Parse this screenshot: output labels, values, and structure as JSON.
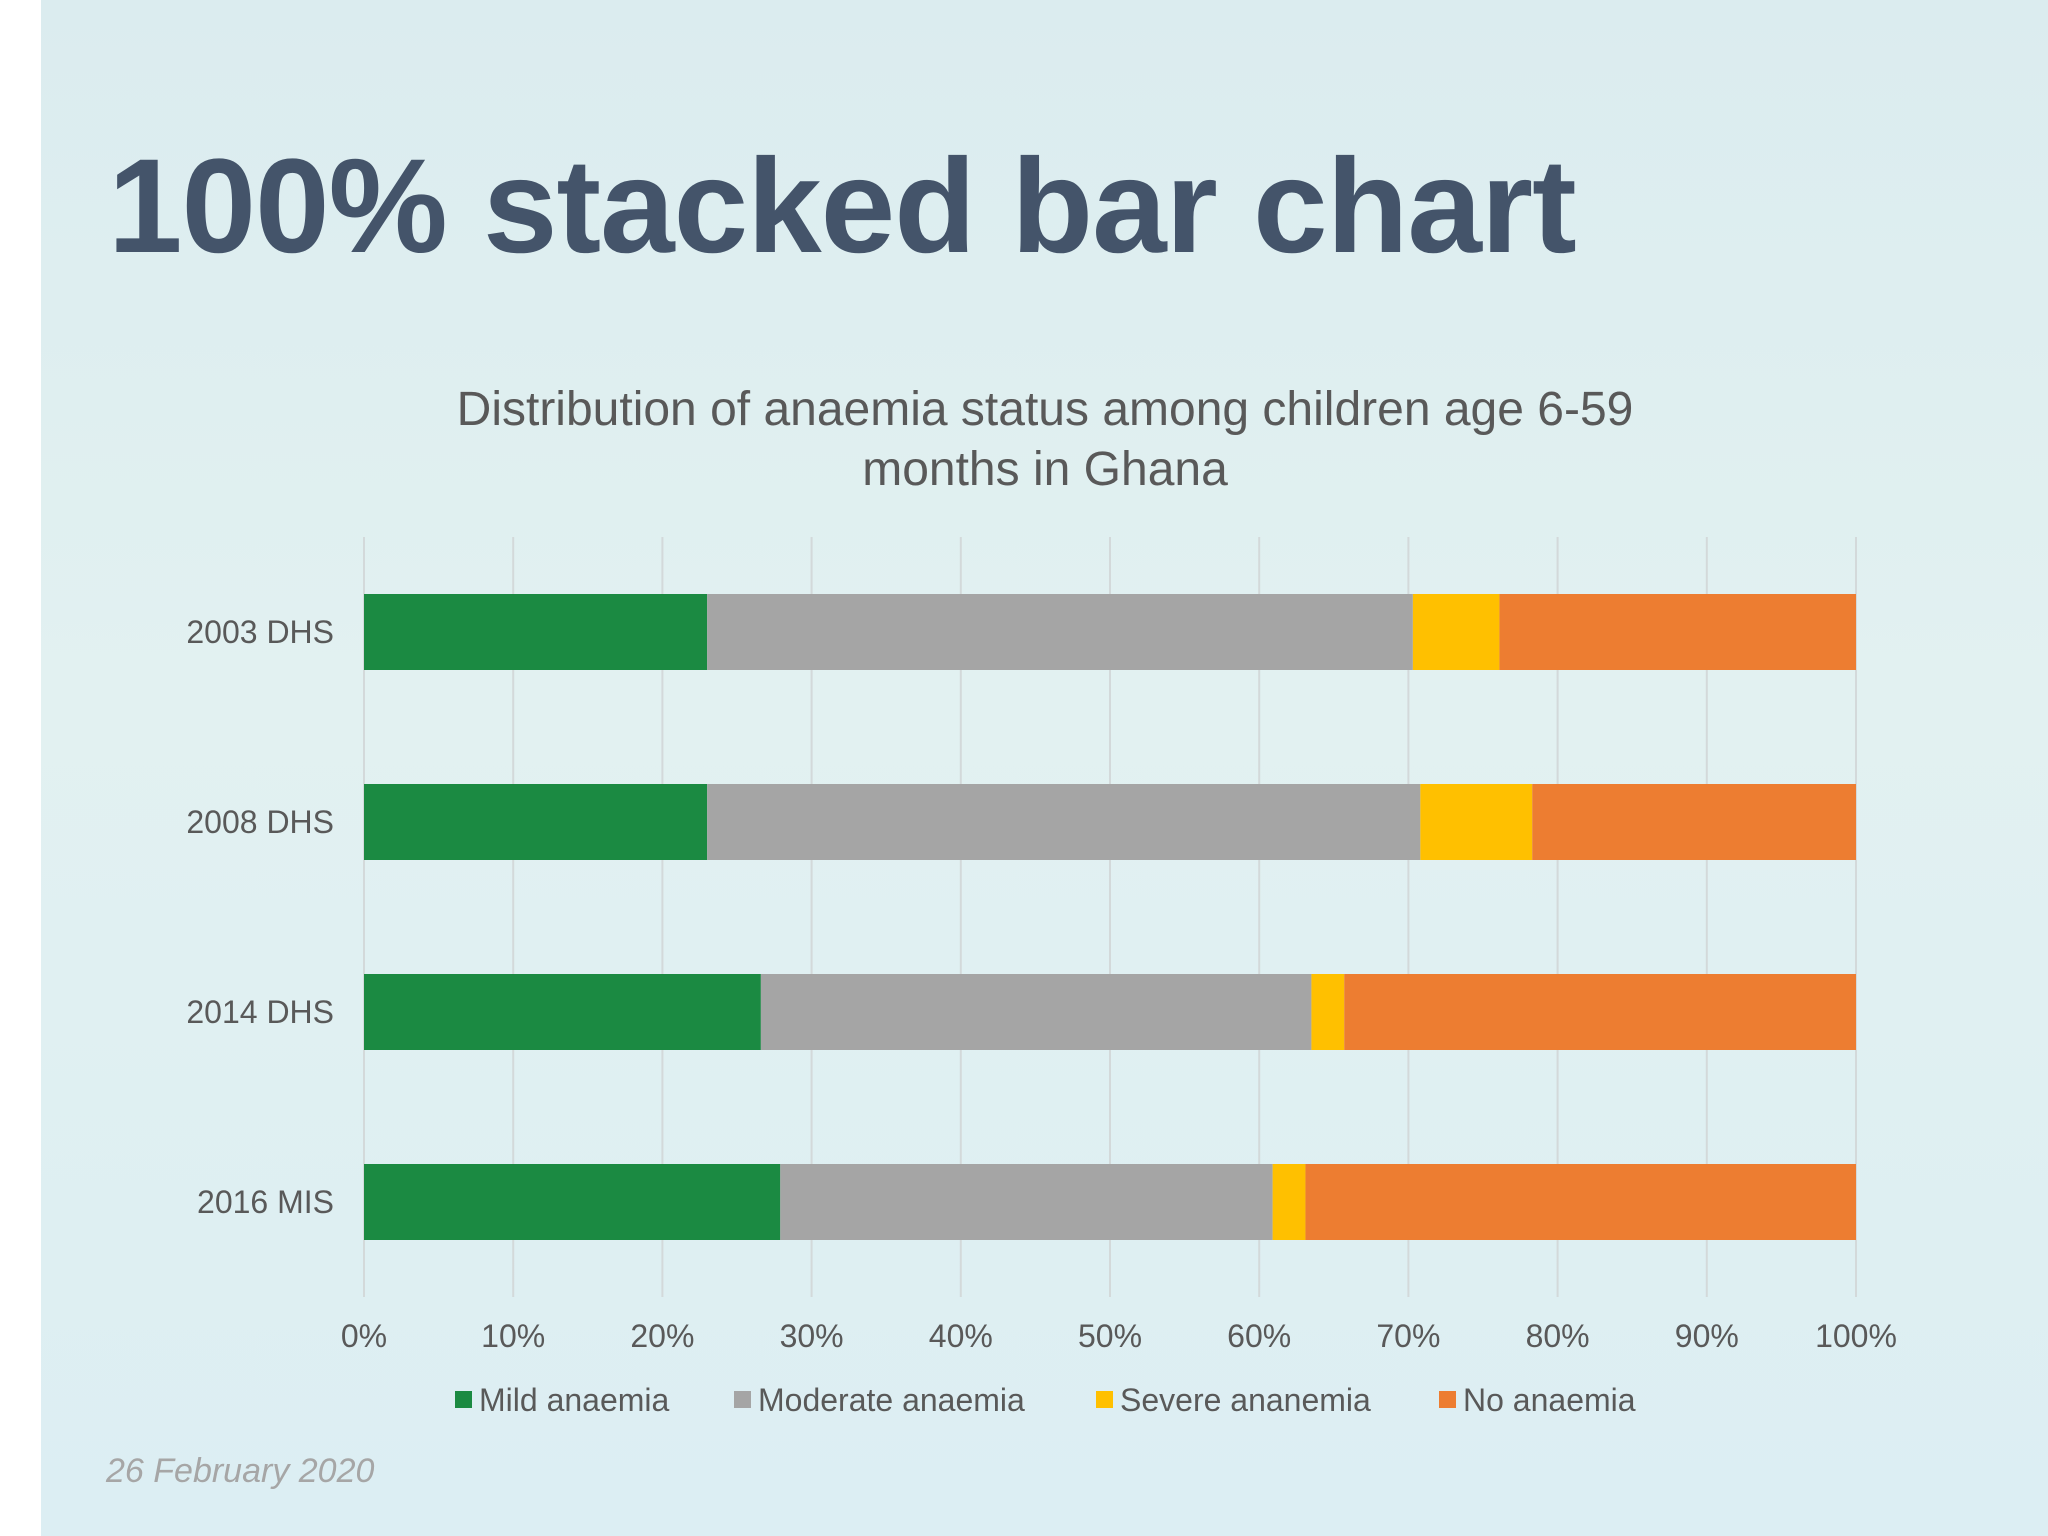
{
  "slide": {
    "title": "100% stacked bar chart",
    "date": "26 February 2020"
  },
  "chart_data": {
    "type": "bar",
    "orientation": "horizontal",
    "stacking": "percent",
    "title": "Distribution of anaemia status among children age 6-59 months in Ghana",
    "title_lines": [
      "Distribution of anaemia status among children age 6-59",
      "months in Ghana"
    ],
    "categories": [
      "2003 DHS",
      "2008 DHS",
      "2014 DHS",
      "2016 MIS"
    ],
    "series": [
      {
        "name": "Mild anaemia",
        "color": "#1b8a42",
        "values": [
          23,
          23,
          26.6,
          27.9
        ]
      },
      {
        "name": "Moderate anaemia",
        "color": "#a5a5a5",
        "values": [
          47.3,
          47.8,
          36.9,
          33
        ]
      },
      {
        "name": "Severe ananemia",
        "color": "#ffc000",
        "values": [
          5.8,
          7.5,
          2.2,
          2.2
        ]
      },
      {
        "name": "No anaemia",
        "color": "#ed7d31",
        "values": [
          23.9,
          21.7,
          34.3,
          36.9
        ]
      }
    ],
    "x_ticks": [
      "0%",
      "10%",
      "20%",
      "30%",
      "40%",
      "50%",
      "60%",
      "70%",
      "80%",
      "90%",
      "100%"
    ],
    "xlim": [
      0,
      100
    ],
    "grid": "vertical",
    "legend": "bottom"
  }
}
